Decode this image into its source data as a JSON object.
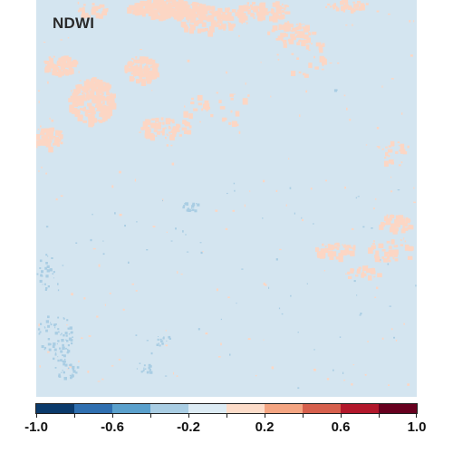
{
  "map": {
    "title": "NDWI",
    "background_color": "#d4e5f0",
    "positive_patch_color": "#fcd6c4",
    "negative_patch_color": "#a9cde3"
  },
  "legend": {
    "min": -1.0,
    "max": 1.0,
    "classes": [
      {
        "from": -1.0,
        "to": -0.8,
        "color": "#0b3a6b"
      },
      {
        "from": -0.8,
        "to": -0.6,
        "color": "#2f6fb0"
      },
      {
        "from": -0.6,
        "to": -0.4,
        "color": "#5aa0cc"
      },
      {
        "from": -0.4,
        "to": -0.2,
        "color": "#a9cde3"
      },
      {
        "from": -0.2,
        "to": 0.0,
        "color": "#dcebf4"
      },
      {
        "from": 0.0,
        "to": 0.2,
        "color": "#fcdcc9"
      },
      {
        "from": 0.2,
        "to": 0.4,
        "color": "#f4a582"
      },
      {
        "from": 0.4,
        "to": 0.6,
        "color": "#d6604d"
      },
      {
        "from": 0.6,
        "to": 0.8,
        "color": "#b2182b"
      },
      {
        "from": 0.8,
        "to": 1.0,
        "color": "#67001f"
      }
    ],
    "tick_labels": [
      {
        "value": -1.0,
        "label": "-1.0"
      },
      {
        "value": -0.6,
        "label": "-0.6"
      },
      {
        "value": -0.2,
        "label": "-0.2"
      },
      {
        "value": 0.2,
        "label": "0.2"
      },
      {
        "value": 0.6,
        "label": "0.6"
      },
      {
        "value": 1.0,
        "label": "1.0"
      }
    ]
  }
}
